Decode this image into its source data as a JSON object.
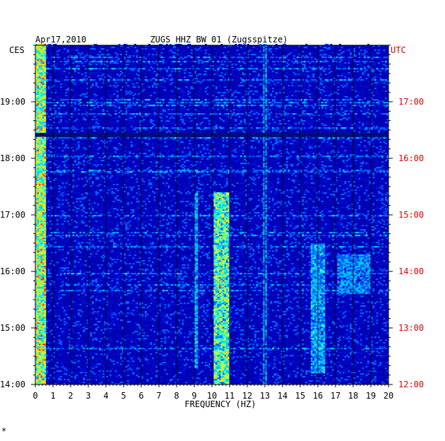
{
  "chart_data": {
    "type": "heatmap",
    "title": "ZUGS HHZ BW 01 (Zugsspitze)",
    "date": "Apr17,2010",
    "xlabel": "FREQUENCY (HZ)",
    "left_axis_label": "CES",
    "right_axis_label": "UTC",
    "xlim": [
      0,
      20
    ],
    "x_ticks": [
      "0",
      "1",
      "2",
      "3",
      "4",
      "5",
      "6",
      "7",
      "8",
      "9",
      "10",
      "11",
      "12",
      "13",
      "14",
      "15",
      "16",
      "17",
      "18",
      "19",
      "20"
    ],
    "y_ticks_left": [
      "19:00",
      "18:00",
      "17:00",
      "16:00",
      "15:00",
      "14:00"
    ],
    "y_ticks_right": [
      "17:00",
      "16:00",
      "15:00",
      "14:00",
      "13:00",
      "12:00"
    ],
    "y_hours_utc": [
      17,
      16,
      15,
      14,
      13,
      12
    ],
    "time_range_utc": [
      "12:00",
      "18:00"
    ],
    "colorscale": [
      "#0000b4",
      "#0010e0",
      "#0060ff",
      "#00c8ff",
      "#30ffd0",
      "#c8ff30",
      "#ffd000",
      "#ff2000"
    ],
    "footer_mark": "*",
    "features": [
      {
        "freq_range": [
          0.0,
          0.6
        ],
        "time_range": [
          12.0,
          18.0
        ],
        "level": 0.75
      },
      {
        "freq_range": [
          8.9,
          9.1
        ],
        "time_range": [
          12.3,
          15.4
        ],
        "level": 0.45
      },
      {
        "freq_range": [
          10.0,
          10.9
        ],
        "time_range": [
          12.0,
          15.4
        ],
        "level": 0.65
      },
      {
        "freq_range": [
          12.8,
          13.0
        ],
        "time_range": [
          12.0,
          18.0
        ],
        "level": 0.4
      },
      {
        "freq_range": [
          15.5,
          16.3
        ],
        "time_range": [
          12.2,
          14.5
        ],
        "level": 0.45
      },
      {
        "freq_range": [
          17.0,
          19.0
        ],
        "time_range": [
          13.6,
          14.3
        ],
        "level": 0.4
      }
    ]
  }
}
